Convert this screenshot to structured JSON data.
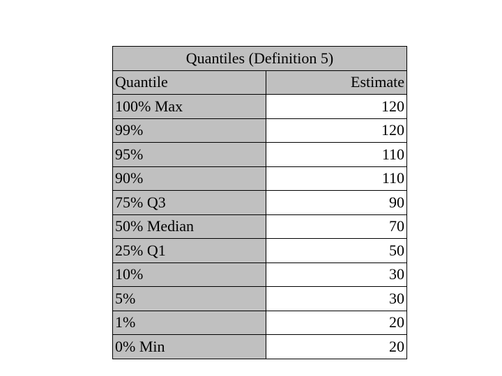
{
  "table": {
    "title": "Quantiles (Definition 5)",
    "headers": {
      "quantile": "Quantile",
      "estimate": "Estimate"
    },
    "rows": [
      {
        "quantile": "100% Max",
        "estimate": "120"
      },
      {
        "quantile": "99%",
        "estimate": "120"
      },
      {
        "quantile": "95%",
        "estimate": "110"
      },
      {
        "quantile": "90%",
        "estimate": "110"
      },
      {
        "quantile": "75% Q3",
        "estimate": "90"
      },
      {
        "quantile": "50% Median",
        "estimate": "70"
      },
      {
        "quantile": "25% Q1",
        "estimate": "50"
      },
      {
        "quantile": "10%",
        "estimate": "30"
      },
      {
        "quantile": "5%",
        "estimate": "30"
      },
      {
        "quantile": "1%",
        "estimate": "20"
      },
      {
        "quantile": "0% Min",
        "estimate": "20"
      }
    ]
  },
  "colors": {
    "header_background": "#c0c0c0",
    "value_background": "#ffffff",
    "border": "#000000"
  }
}
